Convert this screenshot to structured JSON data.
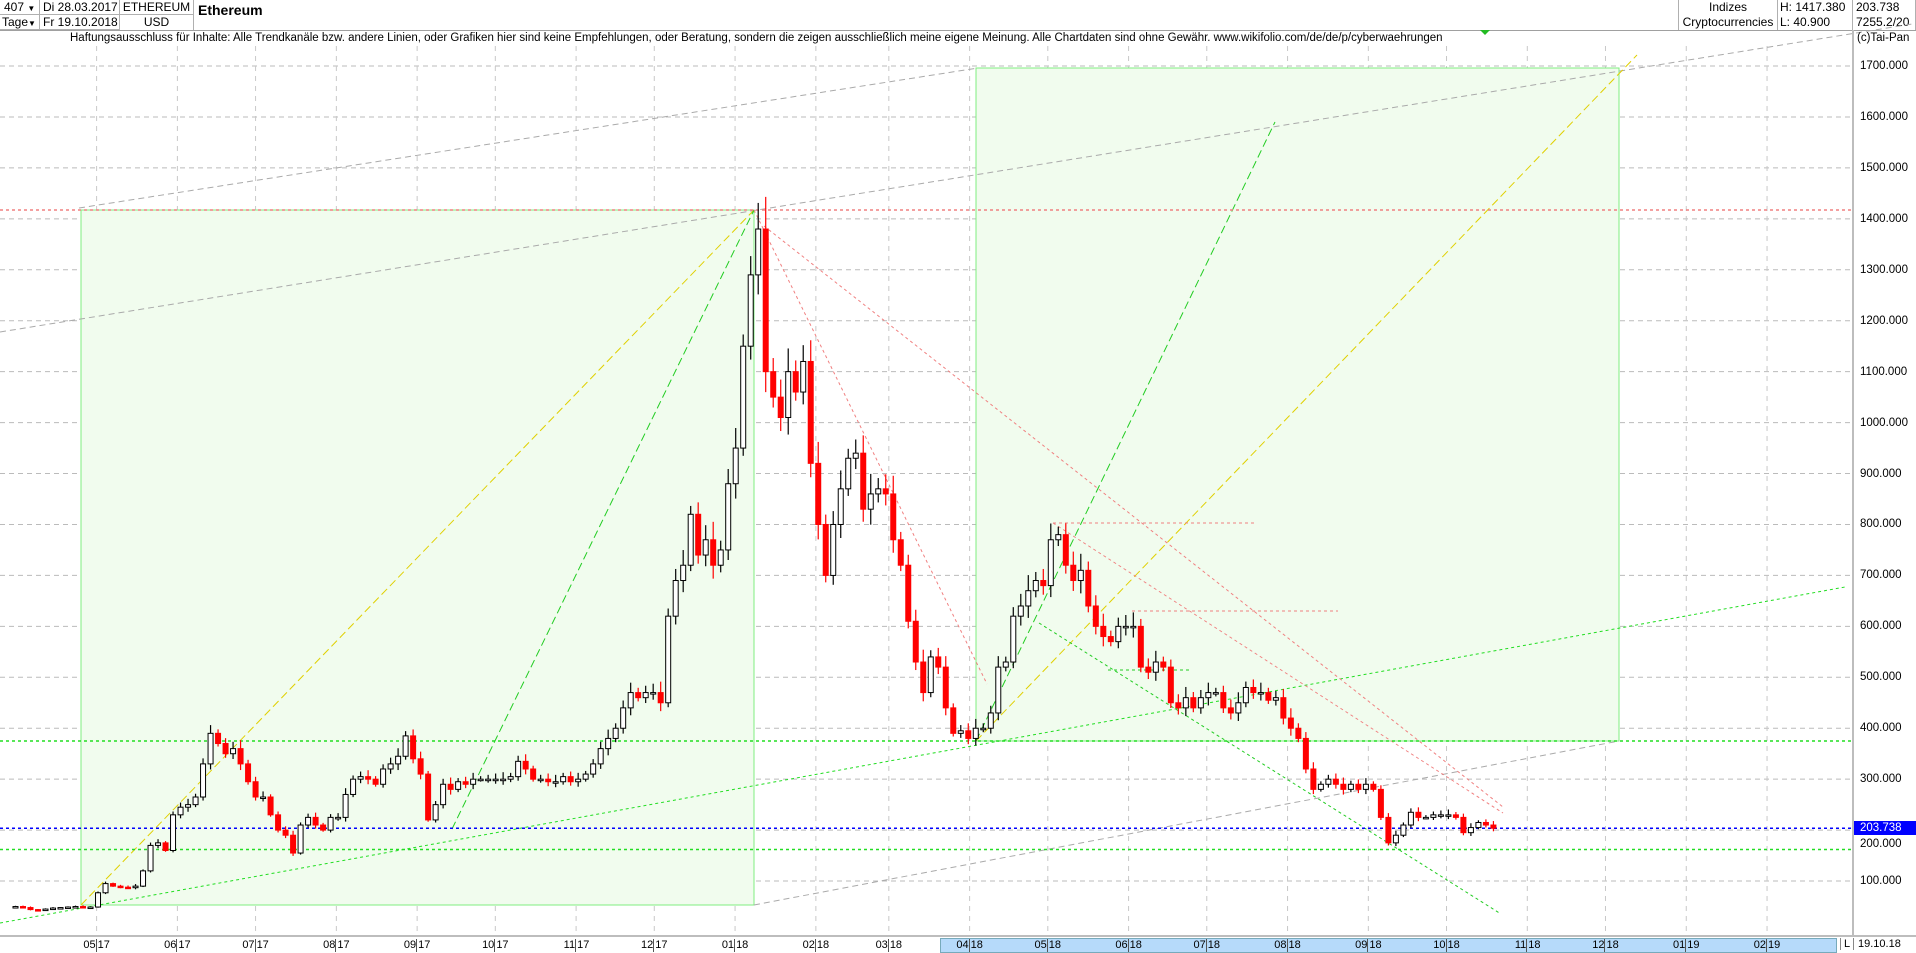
{
  "header": {
    "bars": "407",
    "period": "Tage",
    "start_date": "Di 28.03.2017",
    "end_date": "Fr 19.10.2018",
    "symbol": "ETHEREUM",
    "currency": "USD",
    "title": "Ethereum",
    "group": "Indizes",
    "subgroup": "Cryptocurrencies",
    "high": "H: 1417.380",
    "low": "L: 40.900",
    "last": "203.738",
    "extra": "7255.2/20"
  },
  "disclaimer": "Haftungsausschluss für Inhalte: Alle Trendkanäle bzw. andere Linien, oder Grafiken hier sind keine Empfehlungen, oder Beratung, sondern die zeigen ausschließlich meine eigene Meinung. Alle Chartdaten sind ohne Gewähr.  www.wikifolio.com/de/de/p/cyberwaehrungen",
  "copyright": "(c)Tai-Pan",
  "footer": {
    "mode": "L",
    "date": "19.10.18"
  },
  "colors": {
    "up": "#000000",
    "down": "#ff0000",
    "last_price": "#0000ff",
    "zone": "#f1fcee",
    "zone_border": "#80ee80"
  },
  "chart_data": {
    "type": "candlestick",
    "first_date": "2017-03-28",
    "last_date": "2018-10-19",
    "ylim": [
      0,
      1750
    ],
    "y_ticks": [
      "100.000",
      "200.000",
      "300.000",
      "400.000",
      "500.000",
      "600.000",
      "700.000",
      "800.000",
      "900.000",
      "1000.000",
      "1100.000",
      "1200.000",
      "1300.000",
      "1400.000",
      "1500.000",
      "1600.000",
      "1700.000"
    ],
    "x_ticks": [
      "05 17",
      "06 17",
      "07 17",
      "08 17",
      "09 17",
      "10 17",
      "11 17",
      "12 17",
      "01 18",
      "02 18",
      "03 18",
      "04 18",
      "05 18",
      "06 18",
      "07 18",
      "08 18",
      "09 18",
      "10 18",
      "11 18",
      "12 18",
      "01 19",
      "02 19"
    ],
    "last_price_label": "203.738",
    "levels": {
      "high": 1417.38,
      "support": 375,
      "low_support": 162,
      "last": 203.738
    },
    "closes": [
      50,
      50,
      48,
      44,
      43,
      45,
      47,
      48,
      49,
      50,
      48,
      49,
      77,
      95,
      90,
      88,
      87,
      90,
      120,
      170,
      175,
      160,
      230,
      245,
      250,
      265,
      330,
      390,
      370,
      350,
      360,
      330,
      295,
      265,
      265,
      230,
      200,
      190,
      155,
      210,
      225,
      210,
      200,
      225,
      225,
      270,
      300,
      305,
      300,
      290,
      320,
      330,
      345,
      385,
      340,
      310,
      220,
      250,
      290,
      280,
      295,
      290,
      300,
      300,
      300,
      300,
      300,
      305,
      335,
      320,
      300,
      300,
      295,
      295,
      305,
      295,
      300,
      310,
      330,
      360,
      380,
      400,
      440,
      470,
      460,
      470,
      470,
      450,
      620,
      690,
      720,
      820,
      740,
      770,
      720,
      750,
      880,
      950,
      1150,
      1290,
      1380,
      1100,
      1050,
      1010,
      1100,
      1060,
      1120,
      920,
      800,
      700,
      800,
      870,
      930,
      940,
      830,
      860,
      870,
      860,
      770,
      720,
      610,
      530,
      470,
      540,
      520,
      440,
      390,
      395,
      380,
      400,
      400,
      430,
      520,
      530,
      620,
      640,
      670,
      690,
      680,
      770,
      780,
      720,
      690,
      710,
      640,
      600,
      580,
      570,
      600,
      600,
      600,
      520,
      510,
      530,
      520,
      450,
      440,
      460,
      440,
      460,
      470,
      470,
      440,
      430,
      450,
      480,
      470,
      470,
      455,
      460,
      420,
      400,
      380,
      320,
      280,
      290,
      300,
      290,
      280,
      290,
      280,
      290,
      280,
      225,
      175,
      190,
      210,
      235,
      225,
      225,
      230,
      230,
      230,
      225,
      195,
      205,
      215,
      210,
      203.738
    ]
  }
}
